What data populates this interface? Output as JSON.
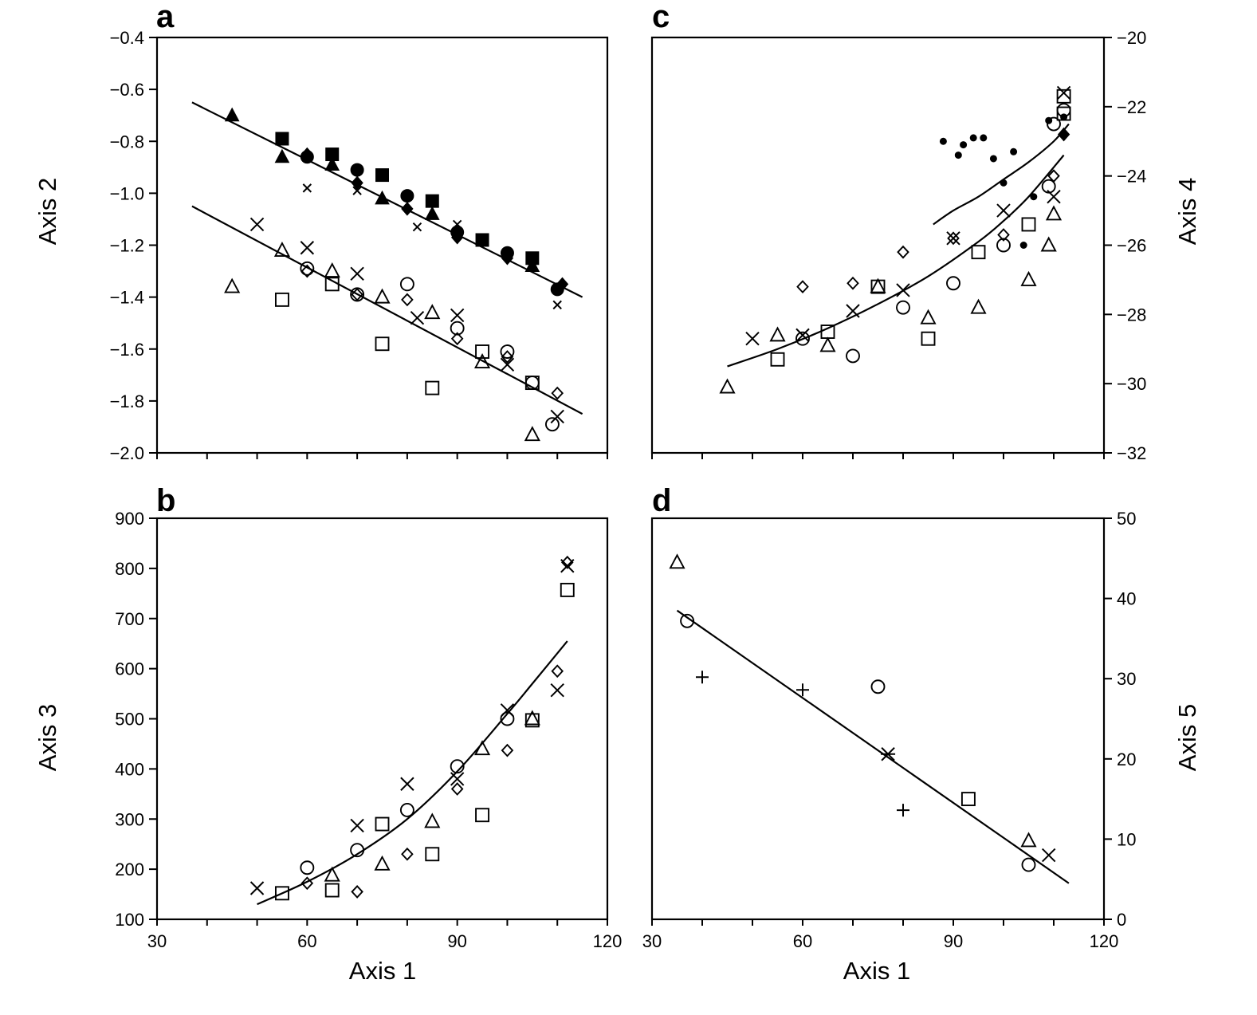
{
  "chart_data": [
    {
      "panel": "a",
      "type": "scatter",
      "ylabel": "Axis 2",
      "xlabel": "",
      "xlim": [
        30,
        120
      ],
      "ylim": [
        -2.0,
        -0.4
      ],
      "x_ticks": [
        30,
        60,
        90,
        120
      ],
      "y_ticks": [
        -0.4,
        -0.6,
        -0.8,
        -1.0,
        -1.2,
        -1.4,
        -1.6,
        -1.8,
        -2.0
      ],
      "x_tick_labels": [
        "",
        "",
        "",
        ""
      ],
      "y_tick_labels": [
        "−0.4",
        "−0.6",
        "−0.8",
        "−1.0",
        "−1.2",
        "−1.4",
        "−1.6",
        "−1.8",
        "−2.0"
      ],
      "y_axis_side": "left",
      "fit_lines": [
        {
          "x": [
            37,
            115
          ],
          "y": [
            -0.65,
            -1.4
          ]
        },
        {
          "x": [
            37,
            115
          ],
          "y": [
            -1.05,
            -1.85
          ]
        }
      ],
      "series": [
        {
          "marker": "triangle-filled",
          "points": [
            [
              45,
              -0.7
            ],
            [
              55,
              -0.86
            ],
            [
              65,
              -0.89
            ],
            [
              75,
              -1.02
            ],
            [
              85,
              -1.08
            ],
            [
              105,
              -1.28
            ]
          ]
        },
        {
          "marker": "square-filled",
          "points": [
            [
              55,
              -0.79
            ],
            [
              65,
              -0.85
            ],
            [
              75,
              -0.93
            ],
            [
              85,
              -1.03
            ],
            [
              95,
              -1.18
            ],
            [
              105,
              -1.25
            ]
          ]
        },
        {
          "marker": "circle-filled",
          "points": [
            [
              60,
              -0.86
            ],
            [
              70,
              -0.91
            ],
            [
              80,
              -1.01
            ],
            [
              90,
              -1.15
            ],
            [
              100,
              -1.23
            ],
            [
              110,
              -1.37
            ]
          ]
        },
        {
          "marker": "diamond-filled",
          "points": [
            [
              60,
              -0.85
            ],
            [
              70,
              -0.96
            ],
            [
              80,
              -1.06
            ],
            [
              90,
              -1.17
            ],
            [
              100,
              -1.25
            ],
            [
              111,
              -1.35
            ]
          ]
        },
        {
          "marker": "x-small",
          "points": [
            [
              60,
              -0.98
            ],
            [
              70,
              -0.99
            ],
            [
              82,
              -1.13
            ],
            [
              90,
              -1.12
            ],
            [
              110,
              -1.43
            ]
          ]
        },
        {
          "marker": "x",
          "points": [
            [
              50,
              -1.12
            ],
            [
              60,
              -1.21
            ],
            [
              70,
              -1.31
            ],
            [
              82,
              -1.48
            ],
            [
              90,
              -1.47
            ],
            [
              100,
              -1.66
            ],
            [
              110,
              -1.86
            ]
          ]
        },
        {
          "marker": "triangle",
          "points": [
            [
              45,
              -1.36
            ],
            [
              55,
              -1.22
            ],
            [
              65,
              -1.3
            ],
            [
              75,
              -1.4
            ],
            [
              85,
              -1.46
            ],
            [
              95,
              -1.65
            ],
            [
              105,
              -1.93
            ]
          ]
        },
        {
          "marker": "circle",
          "points": [
            [
              60,
              -1.29
            ],
            [
              70,
              -1.39
            ],
            [
              80,
              -1.35
            ],
            [
              90,
              -1.52
            ],
            [
              100,
              -1.61
            ],
            [
              105,
              -1.73
            ],
            [
              109,
              -1.89
            ]
          ]
        },
        {
          "marker": "diamond",
          "points": [
            [
              60,
              -1.3
            ],
            [
              70,
              -1.39
            ],
            [
              80,
              -1.41
            ],
            [
              90,
              -1.56
            ],
            [
              100,
              -1.63
            ],
            [
              110,
              -1.77
            ]
          ]
        },
        {
          "marker": "square",
          "points": [
            [
              55,
              -1.41
            ],
            [
              65,
              -1.35
            ],
            [
              75,
              -1.58
            ],
            [
              85,
              -1.75
            ],
            [
              95,
              -1.61
            ],
            [
              105,
              -1.73
            ]
          ]
        }
      ]
    },
    {
      "panel": "b",
      "type": "scatter",
      "ylabel": "Axis 3",
      "xlabel": "Axis 1",
      "xlim": [
        30,
        120
      ],
      "ylim": [
        100,
        900
      ],
      "x_ticks": [
        30,
        60,
        90,
        120
      ],
      "y_ticks": [
        100,
        200,
        300,
        400,
        500,
        600,
        700,
        800,
        900
      ],
      "x_tick_labels": [
        "30",
        "60",
        "90",
        "120"
      ],
      "y_tick_labels": [
        "100",
        "200",
        "300",
        "400",
        "500",
        "600",
        "700",
        "800",
        "900"
      ],
      "y_axis_side": "left",
      "fit_lines": [
        {
          "x": [
            50,
            60,
            70,
            80,
            90,
            100,
            105,
            112
          ],
          "y": [
            130,
            175,
            230,
            300,
            395,
            510,
            570,
            655
          ]
        }
      ],
      "series": [
        {
          "marker": "x",
          "points": [
            [
              50,
              162
            ],
            [
              70,
              287
            ],
            [
              80,
              370
            ],
            [
              90,
              380
            ],
            [
              100,
              517
            ],
            [
              110,
              557
            ],
            [
              112,
              805
            ]
          ]
        },
        {
          "marker": "square",
          "points": [
            [
              55,
              152
            ],
            [
              65,
              158
            ],
            [
              75,
              290
            ],
            [
              85,
              230
            ],
            [
              95,
              308
            ],
            [
              105,
              497
            ],
            [
              112,
              757
            ]
          ]
        },
        {
          "marker": "circle",
          "points": [
            [
              60,
              203
            ],
            [
              70,
              238
            ],
            [
              80,
              318
            ],
            [
              90,
              405
            ],
            [
              100,
              500
            ]
          ]
        },
        {
          "marker": "diamond",
          "points": [
            [
              60,
              172
            ],
            [
              70,
              155
            ],
            [
              80,
              230
            ],
            [
              90,
              360
            ],
            [
              100,
              437
            ],
            [
              110,
              595
            ],
            [
              112,
              812
            ]
          ]
        },
        {
          "marker": "triangle",
          "points": [
            [
              65,
              188
            ],
            [
              75,
              210
            ],
            [
              85,
              295
            ],
            [
              95,
              440
            ],
            [
              105,
              500
            ]
          ]
        }
      ]
    },
    {
      "panel": "c",
      "type": "scatter",
      "ylabel": "Axis 4",
      "xlabel": "",
      "xlim": [
        30,
        120
      ],
      "ylim": [
        -32,
        -20
      ],
      "x_ticks": [
        30,
        60,
        90,
        120
      ],
      "y_ticks": [
        -20,
        -22,
        -24,
        -26,
        -28,
        -30,
        -32
      ],
      "x_tick_labels": [
        "",
        "",
        "",
        ""
      ],
      "y_tick_labels": [
        "−20",
        "−22",
        "−24",
        "−26",
        "−28",
        "−30",
        "−32"
      ],
      "y_axis_side": "right",
      "fit_lines": [
        {
          "x": [
            45,
            55,
            65,
            75,
            85,
            95,
            100,
            105,
            112
          ],
          "y": [
            -29.5,
            -29.0,
            -28.4,
            -27.7,
            -26.9,
            -25.9,
            -25.3,
            -24.6,
            -23.4
          ]
        },
        {
          "x": [
            86,
            90,
            95,
            100,
            105,
            110,
            113
          ],
          "y": [
            -25.4,
            -25.0,
            -24.6,
            -24.1,
            -23.6,
            -23.0,
            -22.5
          ]
        }
      ],
      "series": [
        {
          "marker": "x",
          "points": [
            [
              50,
              -28.7
            ],
            [
              60,
              -28.6
            ],
            [
              70,
              -27.9
            ],
            [
              80,
              -27.3
            ],
            [
              90,
              -25.8
            ],
            [
              100,
              -25.0
            ],
            [
              110,
              -24.6
            ],
            [
              112,
              -21.6
            ]
          ]
        },
        {
          "marker": "triangle",
          "points": [
            [
              45,
              -30.1
            ],
            [
              55,
              -28.6
            ],
            [
              65,
              -28.9
            ],
            [
              75,
              -27.2
            ],
            [
              85,
              -28.1
            ],
            [
              95,
              -27.8
            ],
            [
              105,
              -27.0
            ],
            [
              109,
              -26.0
            ],
            [
              110,
              -25.1
            ]
          ]
        },
        {
          "marker": "square",
          "points": [
            [
              55,
              -29.3
            ],
            [
              65,
              -28.5
            ],
            [
              75,
              -27.2
            ],
            [
              85,
              -28.7
            ],
            [
              95,
              -26.2
            ],
            [
              105,
              -25.4
            ],
            [
              112,
              -21.7
            ],
            [
              112,
              -22.2
            ]
          ]
        },
        {
          "marker": "circle",
          "points": [
            [
              60,
              -28.7
            ],
            [
              70,
              -29.2
            ],
            [
              80,
              -27.8
            ],
            [
              90,
              -27.1
            ],
            [
              100,
              -26.0
            ],
            [
              109,
              -24.3
            ],
            [
              110,
              -22.5
            ],
            [
              112,
              -22.1
            ]
          ]
        },
        {
          "marker": "diamond",
          "points": [
            [
              60,
              -27.2
            ],
            [
              70,
              -27.1
            ],
            [
              80,
              -26.2
            ],
            [
              90,
              -25.8
            ],
            [
              100,
              -25.7
            ],
            [
              110,
              -24.0
            ]
          ]
        },
        {
          "marker": "dot",
          "points": [
            [
              88,
              -23.0
            ],
            [
              91,
              -23.4
            ],
            [
              92,
              -23.1
            ],
            [
              94,
              -22.9
            ],
            [
              96,
              -22.9
            ],
            [
              98,
              -23.5
            ],
            [
              100,
              -24.2
            ],
            [
              102,
              -23.3
            ],
            [
              104,
              -26.0
            ],
            [
              106,
              -24.6
            ],
            [
              109,
              -22.4
            ],
            [
              112,
              -22.3
            ]
          ]
        },
        {
          "marker": "diamond-filled",
          "points": [
            [
              112,
              -22.8
            ]
          ]
        }
      ]
    },
    {
      "panel": "d",
      "type": "scatter",
      "ylabel": "Axis 5",
      "xlabel": "Axis 1",
      "xlim": [
        30,
        120
      ],
      "ylim": [
        0,
        50
      ],
      "x_ticks": [
        30,
        60,
        90,
        120
      ],
      "y_ticks": [
        0,
        10,
        20,
        30,
        40,
        50
      ],
      "x_tick_labels": [
        "30",
        "60",
        "90",
        "120"
      ],
      "y_tick_labels": [
        "0",
        "10",
        "20",
        "30",
        "40",
        "50"
      ],
      "y_axis_side": "right",
      "fit_lines": [
        {
          "x": [
            35,
            113
          ],
          "y": [
            38.5,
            4.5
          ]
        }
      ],
      "series": [
        {
          "marker": "triangle",
          "points": [
            [
              35,
              44.5
            ],
            [
              105,
              9.8
            ]
          ]
        },
        {
          "marker": "circle",
          "points": [
            [
              37,
              37.2
            ],
            [
              75,
              29.0
            ],
            [
              105,
              6.8
            ]
          ]
        },
        {
          "marker": "plus",
          "points": [
            [
              40,
              30.2
            ],
            [
              60,
              28.6
            ],
            [
              80,
              13.6
            ]
          ]
        },
        {
          "marker": "asterisk",
          "points": [
            [
              77,
              20.6
            ]
          ]
        },
        {
          "marker": "square",
          "points": [
            [
              93,
              15.0
            ]
          ]
        },
        {
          "marker": "x",
          "points": [
            [
              109,
              8.0
            ]
          ]
        }
      ]
    }
  ]
}
